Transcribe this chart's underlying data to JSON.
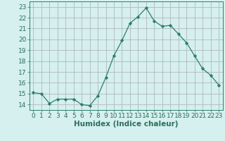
{
  "x": [
    0,
    1,
    2,
    3,
    4,
    5,
    6,
    7,
    8,
    9,
    10,
    11,
    12,
    13,
    14,
    15,
    16,
    17,
    18,
    19,
    20,
    21,
    22,
    23
  ],
  "y": [
    15.1,
    15.0,
    14.1,
    14.5,
    14.5,
    14.5,
    14.0,
    13.9,
    14.8,
    16.5,
    18.5,
    19.9,
    21.5,
    22.1,
    22.9,
    21.7,
    21.2,
    21.3,
    20.5,
    19.7,
    18.5,
    17.3,
    16.7,
    15.8
  ],
  "line_color": "#2d7d6e",
  "marker": "D",
  "marker_size": 2.2,
  "bg_color": "#d5f0ee",
  "grid_color": "#b0b8b8",
  "axis_color": "#2d7d6e",
  "text_color": "#2d6e5a",
  "xlabel": "Humidex (Indice chaleur)",
  "xlabel_fontsize": 7.5,
  "xlim": [
    -0.5,
    23.5
  ],
  "ylim": [
    13.5,
    23.5
  ],
  "yticks": [
    14,
    15,
    16,
    17,
    18,
    19,
    20,
    21,
    22,
    23
  ],
  "xticks": [
    0,
    1,
    2,
    3,
    4,
    5,
    6,
    7,
    8,
    9,
    10,
    11,
    12,
    13,
    14,
    15,
    16,
    17,
    18,
    19,
    20,
    21,
    22,
    23
  ],
  "tick_fontsize": 6.5,
  "fig_width": 3.2,
  "fig_height": 2.0,
  "dpi": 100
}
